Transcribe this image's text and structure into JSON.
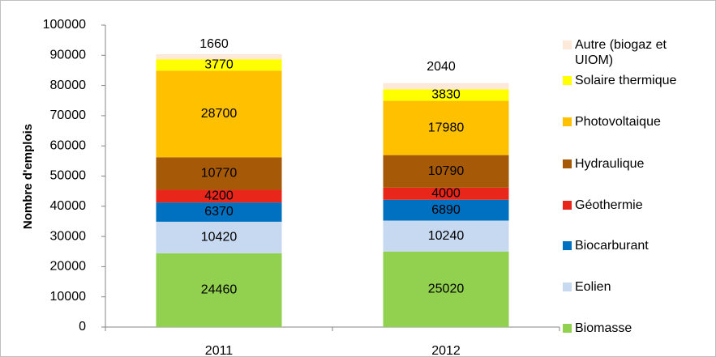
{
  "chart_data": {
    "type": "stacked_bar",
    "categories": [
      "2011",
      "2012"
    ],
    "y_axis_label": "Nombre d'emplois",
    "ylim": [
      0,
      100000
    ],
    "yticks": [
      0,
      10000,
      20000,
      30000,
      40000,
      50000,
      60000,
      70000,
      80000,
      90000,
      100000
    ],
    "series": [
      {
        "name": "Biomasse",
        "color": "#92d050",
        "values": [
          24460,
          25020
        ]
      },
      {
        "name": "Eolien",
        "color": "#c6d9f1",
        "values": [
          10420,
          10240
        ]
      },
      {
        "name": "Biocarburant",
        "color": "#0070c0",
        "values": [
          6370,
          6890
        ]
      },
      {
        "name": "Géothermie",
        "color": "#e8261a",
        "values": [
          4200,
          4000
        ]
      },
      {
        "name": "Hydraulique",
        "color": "#a65a07",
        "values": [
          10770,
          10790
        ]
      },
      {
        "name": "Photovoltaique",
        "color": "#ffc000",
        "values": [
          28700,
          17980
        ]
      },
      {
        "name": "Solaire thermique",
        "color": "#ffff00",
        "values": [
          3770,
          3830
        ]
      },
      {
        "name": "Autre (biogaz et UIOM)",
        "color": "#fde9d9",
        "values": [
          1660,
          2040
        ]
      }
    ]
  }
}
